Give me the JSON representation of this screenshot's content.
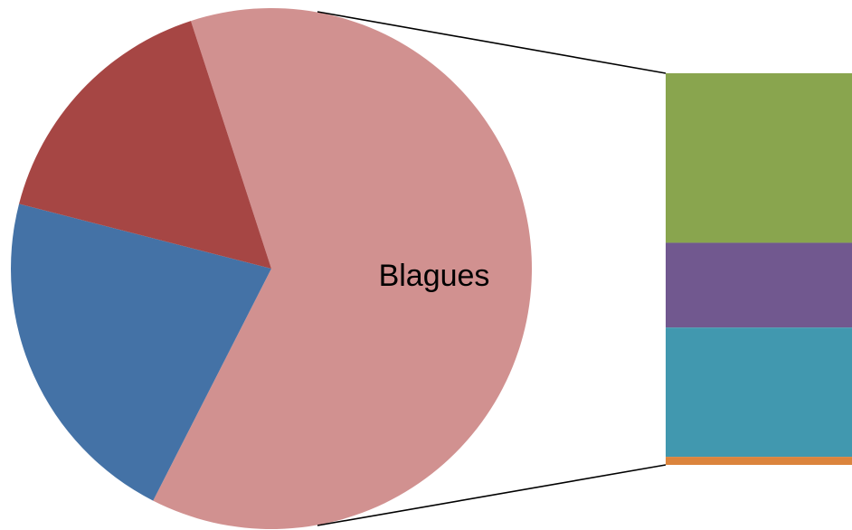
{
  "chart_data": {
    "type": "pie",
    "subtype": "bar-of-pie",
    "title": "",
    "grid": false,
    "legend": "none",
    "pie": {
      "slices": [
        {
          "label": "Blagues",
          "value": 62.5,
          "color": "#d19190"
        },
        {
          "label": "",
          "value": 21.5,
          "color": "#4472a6"
        },
        {
          "label": "",
          "value": 16.0,
          "color": "#a64644"
        }
      ]
    },
    "bar": {
      "segments": [
        {
          "label": "",
          "value": 44.2,
          "color": "#89a54e"
        },
        {
          "label": "",
          "value": 22.1,
          "color": "#71588f"
        },
        {
          "label": "",
          "value": 33.7,
          "color": "#4198af"
        },
        {
          "label": "",
          "value": 2.1,
          "color": "#db843d"
        }
      ]
    },
    "connector_color": "#000000"
  }
}
